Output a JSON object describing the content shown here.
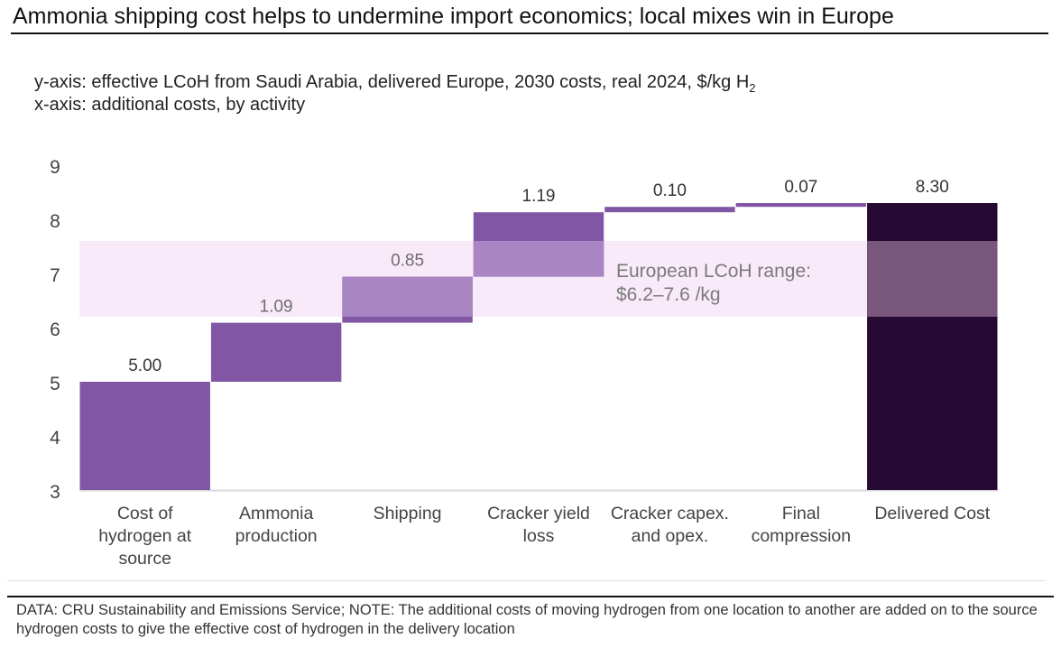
{
  "header": {
    "title": "Ammonia shipping cost helps to undermine import economics; local mixes win in Europe",
    "subtitle_y_prefix": "y-axis: effective LCoH from Saudi Arabia, delivered Europe, 2030 costs, real 2024, $/kg H",
    "subtitle_y_sub": "2",
    "subtitle_x": "x-axis: additional costs, by activity"
  },
  "footer": {
    "note": "DATA: CRU Sustainability and Emissions Service; NOTE: The additional costs of moving hydrogen from one location to another are added on to the source hydrogen costs to give the effective cost of hydrogen in the delivery location"
  },
  "chart_data": {
    "type": "waterfall",
    "title": "Ammonia shipping cost helps to undermine import economics; local mixes win in Europe",
    "ylabel": "effective LCoH from Saudi Arabia, delivered Europe, 2030 costs, real 2024, $/kg H2",
    "xlabel": "additional costs, by activity",
    "ylim": [
      3,
      9
    ],
    "yticks": [
      3,
      4,
      5,
      6,
      7,
      8,
      9
    ],
    "grid": false,
    "categories": [
      [
        "Cost of",
        "hydrogen at",
        "source"
      ],
      [
        "Ammonia",
        "production"
      ],
      [
        "Shipping"
      ],
      [
        "Cracker yield",
        "loss"
      ],
      [
        "Cracker capex.",
        "and opex."
      ],
      [
        "Final",
        "compression"
      ],
      [
        "Delivered Cost"
      ]
    ],
    "bars": [
      {
        "name": "Cost of hydrogen at source",
        "kind": "base",
        "start": 3,
        "end": 5.0,
        "label": "5.00"
      },
      {
        "name": "Ammonia production",
        "kind": "increment",
        "start": 5.0,
        "end": 6.09,
        "label": "1.09"
      },
      {
        "name": "Shipping",
        "kind": "increment",
        "start": 6.09,
        "end": 6.94,
        "label": "0.85"
      },
      {
        "name": "Cracker yield loss",
        "kind": "increment",
        "start": 6.94,
        "end": 8.13,
        "label": "1.19"
      },
      {
        "name": "Cracker capex. and opex.",
        "kind": "increment",
        "start": 8.13,
        "end": 8.23,
        "label": "0.10"
      },
      {
        "name": "Final compression",
        "kind": "increment",
        "start": 8.23,
        "end": 8.3,
        "label": "0.07"
      },
      {
        "name": "Delivered Cost",
        "kind": "total",
        "start": 3,
        "end": 8.3,
        "label": "8.30"
      }
    ],
    "band": {
      "low": 6.2,
      "high": 7.6,
      "label_line1": "European LCoH range:",
      "label_line2": "$6.2–7.6 /kg"
    },
    "colors": {
      "increment": "#8157a5",
      "increment_in_band": "#a985c3",
      "total": "#260a33",
      "total_in_band": "#79567b",
      "band": "#f8eaf8",
      "band_text": "#7a7a7a",
      "axis_text": "#444444",
      "baseline": "#d9d9d9"
    }
  }
}
